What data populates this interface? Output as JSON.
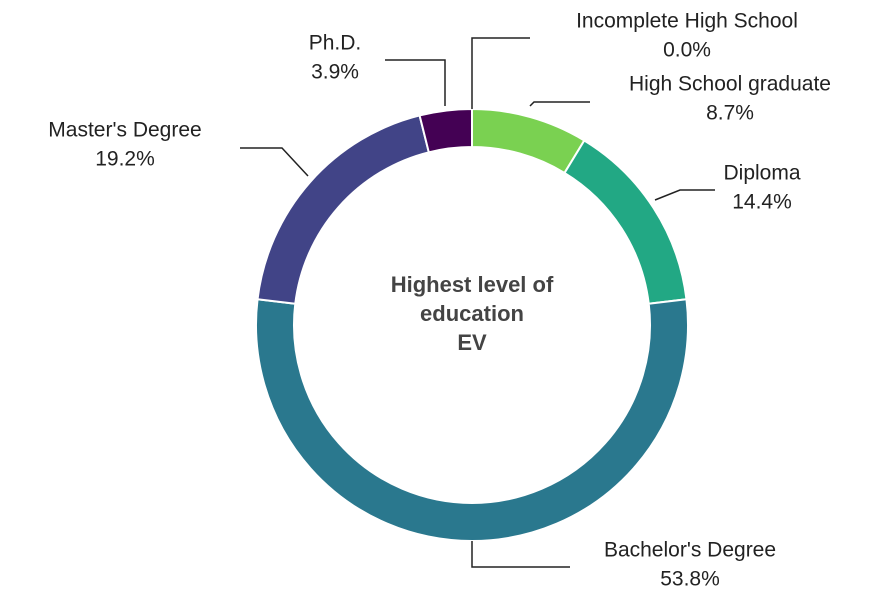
{
  "chart_data": {
    "type": "donut",
    "title": "Highest level of\neducation\nEV",
    "categories": [
      "Incomplete High School",
      "High School graduate",
      "Diploma",
      "Bachelor's Degree",
      "Master's Degree",
      "Ph.D."
    ],
    "values": [
      0.0,
      8.7,
      14.4,
      53.8,
      19.2,
      3.9
    ],
    "value_labels": [
      "0.0%",
      "8.7%",
      "14.4%",
      "53.8%",
      "19.2%",
      "3.9%"
    ],
    "colors": [
      "#fde725",
      "#7ad151",
      "#22a884",
      "#2a788e",
      "#414487",
      "#440154"
    ]
  }
}
